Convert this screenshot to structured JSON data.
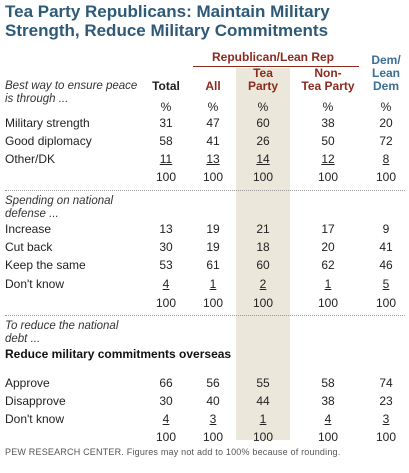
{
  "chart_data": {
    "type": "table",
    "title": "Tea Party Republicans: Maintain Military Strength, Reduce Military Commitments",
    "group_header": "Republican/Lean Rep",
    "columns": [
      {
        "key": "total",
        "label": [
          "Total"
        ]
      },
      {
        "key": "all",
        "label": [
          "All"
        ]
      },
      {
        "key": "tea",
        "label": [
          "Tea",
          "Party"
        ]
      },
      {
        "key": "non",
        "label": [
          "Non-",
          "Tea Party"
        ]
      },
      {
        "key": "dem",
        "label": [
          "Dem/",
          "Lean",
          "Dem"
        ]
      }
    ],
    "sections": [
      {
        "question": [
          "Best way to ensure peace",
          "is through ..."
        ],
        "subheading": "",
        "rows": [
          {
            "label": "",
            "values": [
              "%",
              "%",
              "%",
              "%",
              "%"
            ],
            "underline": false
          },
          {
            "label": "Military strength",
            "values": [
              "31",
              "47",
              "60",
              "38",
              "20"
            ],
            "underline": false
          },
          {
            "label": "Good diplomacy",
            "values": [
              "58",
              "41",
              "26",
              "50",
              "72"
            ],
            "underline": false
          },
          {
            "label": "Other/DK",
            "values": [
              "11",
              "13",
              "14",
              "12",
              "8"
            ],
            "underline": true
          },
          {
            "label": "",
            "values": [
              "100",
              "100",
              "100",
              "100",
              "100"
            ],
            "underline": false
          }
        ]
      },
      {
        "question": [
          "Spending on national",
          "defense ..."
        ],
        "subheading": "",
        "rows": [
          {
            "label": "Increase",
            "values": [
              "13",
              "19",
              "21",
              "17",
              "9"
            ],
            "underline": false
          },
          {
            "label": "Cut back",
            "values": [
              "30",
              "19",
              "18",
              "20",
              "41"
            ],
            "underline": false
          },
          {
            "label": "Keep the same",
            "values": [
              "53",
              "61",
              "60",
              "62",
              "46"
            ],
            "underline": false
          },
          {
            "label": "Don't know",
            "values": [
              "4",
              "1",
              "2",
              "1",
              "5"
            ],
            "underline": true
          },
          {
            "label": "",
            "values": [
              "100",
              "100",
              "100",
              "100",
              "100"
            ],
            "underline": false
          }
        ]
      },
      {
        "question": [
          "To reduce the national",
          "debt ..."
        ],
        "subheading": "Reduce military commitments overseas",
        "rows": [
          {
            "label": "Approve",
            "values": [
              "66",
              "56",
              "55",
              "58",
              "74"
            ],
            "underline": false
          },
          {
            "label": "Disapprove",
            "values": [
              "30",
              "40",
              "44",
              "38",
              "23"
            ],
            "underline": false
          },
          {
            "label": "Don't know",
            "values": [
              "4",
              "3",
              "1",
              "4",
              "3"
            ],
            "underline": true
          },
          {
            "label": "",
            "values": [
              "100",
              "100",
              "100",
              "100",
              "100"
            ],
            "underline": false
          }
        ]
      }
    ],
    "footnote": "PEW RESEARCH CENTER. Figures may not add to 100% because of rounding."
  },
  "colors": {
    "title": "#2e5a78",
    "republican": "#8b2b1f",
    "democrat": "#3b6e94",
    "highlight": "#ebe7da"
  }
}
